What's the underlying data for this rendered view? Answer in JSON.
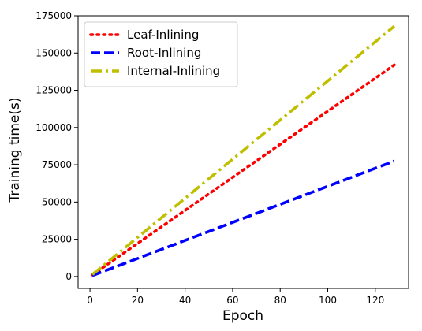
{
  "chart_data": {
    "type": "line",
    "title": "",
    "xlabel": "Epoch",
    "ylabel": "Training time(s)",
    "xlim": [
      -5,
      134
    ],
    "ylim": [
      -8000,
      175000
    ],
    "xticks": [
      0,
      20,
      40,
      60,
      80,
      100,
      120
    ],
    "yticks": [
      0,
      25000,
      50000,
      75000,
      100000,
      125000,
      150000,
      175000
    ],
    "grid": false,
    "legend_position": "top-left",
    "series": [
      {
        "name": "Leaf-Inlining",
        "color": "#ff0000",
        "style": "dotted",
        "x": [
          1,
          128
        ],
        "y": [
          1100,
          142000
        ]
      },
      {
        "name": "Root-Inlining",
        "color": "#0000ff",
        "style": "dashed",
        "x": [
          1,
          128
        ],
        "y": [
          600,
          77500
        ]
      },
      {
        "name": "Internal-Inlining",
        "color": "#bfbf00",
        "style": "dashdot",
        "x": [
          1,
          128
        ],
        "y": [
          1300,
          168000
        ]
      }
    ]
  }
}
